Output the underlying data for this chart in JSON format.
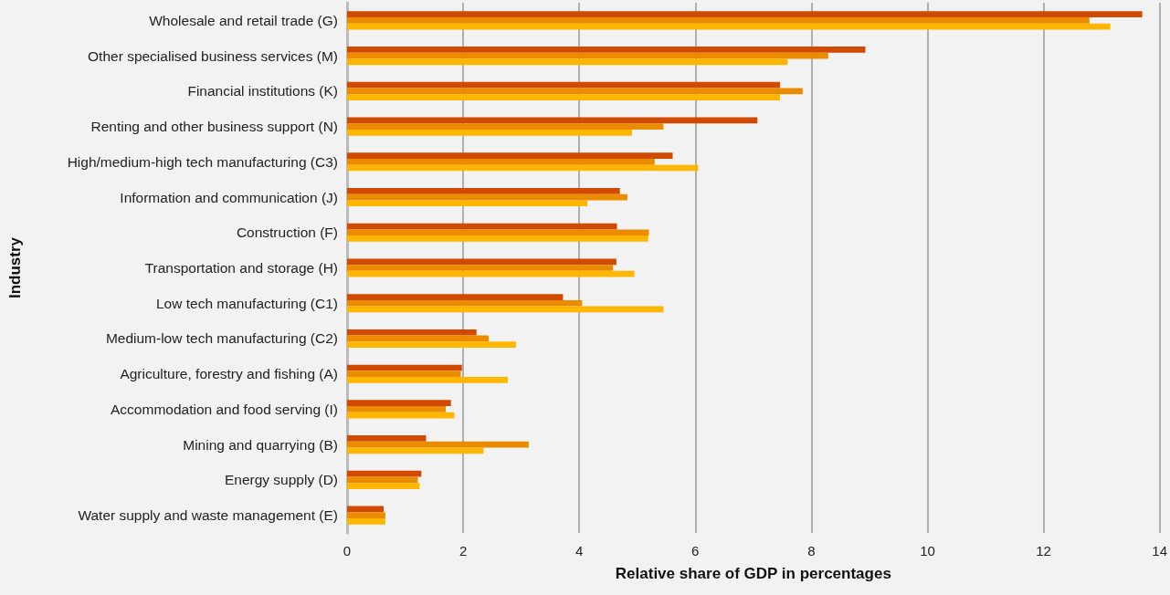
{
  "chart_data": {
    "type": "bar",
    "orientation": "horizontal",
    "xlabel": "Relative share of GDP in percentages",
    "ylabel": "Industry",
    "categories": [
      "Wholesale and retail trade (G)",
      "Other specialised business services (M)",
      "Financial institutions (K)",
      "Renting and other business support (N)",
      "High/medium-high tech manufacturing (C3)",
      "Information and communication (J)",
      "Construction (F)",
      "Transportation and storage (H)",
      "Low tech manufacturing (C1)",
      "Medium-low tech manufacturing (C2)",
      "Agriculture, forestry and fishing (A)",
      "Accommodation and food serving (I)",
      "Mining and quarrying (B)",
      "Energy supply (D)",
      "Water supply and waste management (E)"
    ],
    "series": [
      {
        "color": "#d04a02",
        "values": [
          13.7,
          8.93,
          7.46,
          7.07,
          5.61,
          4.7,
          4.65,
          4.64,
          3.72,
          2.23,
          1.98,
          1.79,
          1.36,
          1.28,
          0.63
        ]
      },
      {
        "color": "#eb8c00",
        "values": [
          12.79,
          8.29,
          7.85,
          5.45,
          5.3,
          4.83,
          5.2,
          4.58,
          4.05,
          2.44,
          1.96,
          1.7,
          3.13,
          1.22,
          0.66
        ]
      },
      {
        "color": "#ffb600",
        "values": [
          13.15,
          7.59,
          7.46,
          4.91,
          6.05,
          4.14,
          5.19,
          4.95,
          5.45,
          2.91,
          2.77,
          1.85,
          2.35,
          1.25,
          0.66
        ]
      }
    ],
    "xlim": [
      0,
      14
    ],
    "xticks": [
      0,
      2,
      4,
      6,
      8,
      10,
      12,
      14
    ],
    "grid": "x"
  }
}
